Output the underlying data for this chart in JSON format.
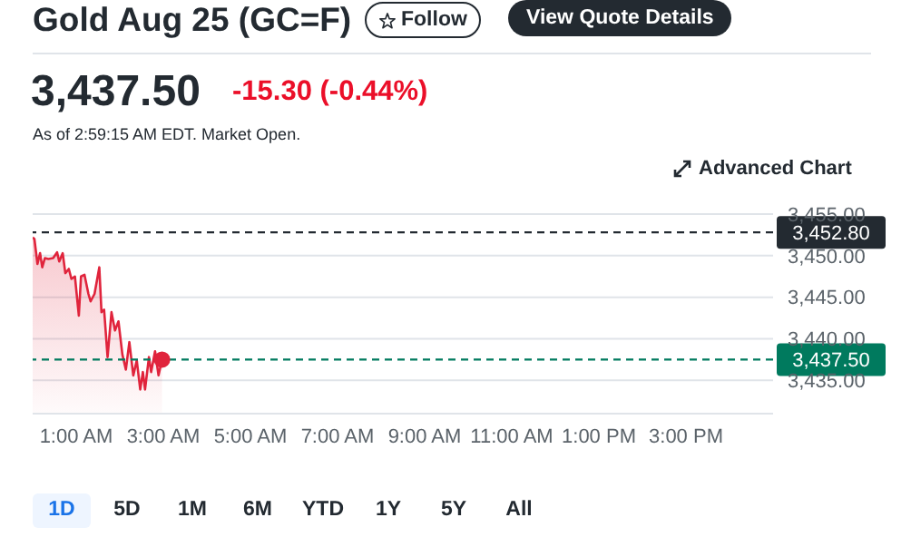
{
  "chart_data": {
    "type": "area",
    "title": "Gold Aug 25 (GC=F)",
    "annotations": [
      "Follow",
      "View Quote Details",
      "3,437.50",
      "-15.30 (-0.44%)",
      "As of 2:59:15 AM EDT. Market Open.",
      "Advanced Chart",
      "1D",
      "5D",
      "1M",
      "6M",
      "YTD",
      "1Y",
      "5Y",
      "All"
    ],
    "series": [
      {
        "color": "#e0243c",
        "marker": "none",
        "x": [
          0,
          0.04,
          0.11,
          0.17,
          0.22,
          0.28,
          0.36,
          0.47,
          0.56,
          0.61,
          0.69,
          0.75,
          0.83,
          0.89,
          0.97,
          1.06,
          1.11,
          1.19,
          1.28,
          1.33,
          1.42,
          1.53,
          1.58,
          1.64,
          1.72,
          1.81,
          1.89,
          1.97,
          2.06,
          2.14,
          2.22,
          2.31,
          2.39,
          2.47,
          2.53,
          2.58,
          2.67,
          2.72,
          2.81,
          2.89,
          2.97
        ],
        "values": [
          3452.2,
          3452.0,
          3449.0,
          3450.3,
          3448.6,
          3449.7,
          3449.6,
          3449.7,
          3450.4,
          3449.3,
          3450.3,
          3447.9,
          3448.4,
          3447.2,
          3447.5,
          3442.8,
          3447.5,
          3447.7,
          3445.4,
          3444.5,
          3445.4,
          3448.6,
          3443.2,
          3443.5,
          3437.8,
          3443.2,
          3441.0,
          3442.1,
          3438.1,
          3436.3,
          3439.6,
          3435.6,
          3437.4,
          3433.9,
          3436.0,
          3433.9,
          3437.8,
          3436.0,
          3438.5,
          3435.6,
          3437.5
        ]
      },
      {
        "type": "scatter",
        "color": "#e0243c",
        "marker": "circle",
        "x": [
          2.97
        ],
        "values": [
          3437.5
        ]
      }
    ],
    "xlim": [
      0,
      17
    ],
    "xticks": [
      {
        "value": 1,
        "label": "1:00 AM"
      },
      {
        "value": 3,
        "label": "3:00 AM"
      },
      {
        "value": 5,
        "label": "5:00 AM"
      },
      {
        "value": 7,
        "label": "7:00 AM"
      },
      {
        "value": 9,
        "label": "9:00 AM"
      },
      {
        "value": 11,
        "label": "11:00 AM"
      },
      {
        "value": 13,
        "label": "1:00 PM"
      },
      {
        "value": 15,
        "label": "3:00 PM"
      }
    ],
    "ylim": [
      3431,
      3455
    ],
    "yticks": [
      {
        "value": 3435,
        "label": "3,435.00"
      },
      {
        "value": 3440,
        "label": "3,440.00"
      },
      {
        "value": 3445,
        "label": "3,445.00"
      },
      {
        "value": 3450,
        "label": "3,450.00"
      },
      {
        "value": 3455,
        "label": "3,455.00"
      }
    ],
    "grid": "y",
    "legend": false,
    "ref_lines": [
      {
        "axis": "y",
        "value": 3452.8,
        "label": "3,452.80",
        "color": "#232a31",
        "line_style": "dashed"
      },
      {
        "axis": "y",
        "value": 3437.5,
        "label": "3,437.50",
        "color": "#007a5e",
        "line_style": "dashed"
      }
    ]
  }
}
